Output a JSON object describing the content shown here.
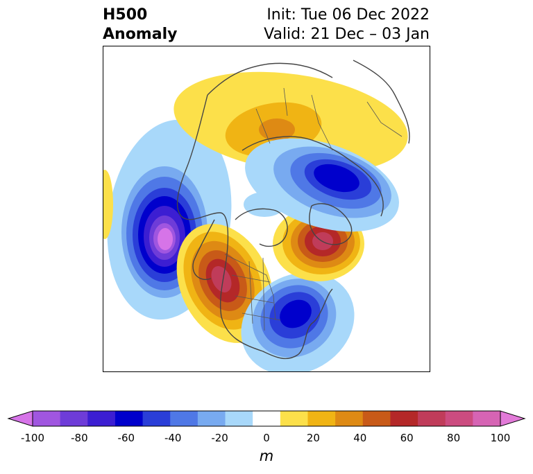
{
  "header": {
    "title_line1": "H500",
    "title_line2": "Anomaly",
    "init_text": "Init: Tue 06 Dec 2022",
    "valid_text": "Valid: 21 Dec – 03 Jan"
  },
  "colorbar": {
    "unit_label": "m",
    "ticks": [
      "-100",
      "-80",
      "-60",
      "-40",
      "-20",
      "0",
      "20",
      "40",
      "60",
      "80",
      "100"
    ],
    "levels": [
      -100,
      -90,
      -80,
      -70,
      -60,
      -50,
      -40,
      -30,
      -20,
      -10,
      10,
      20,
      30,
      40,
      50,
      60,
      70,
      80,
      90,
      100
    ],
    "colors": [
      "#d674e8",
      "#a056e0",
      "#6e3cd8",
      "#3c1ed2",
      "#0000cc",
      "#2a3ed8",
      "#4f78e6",
      "#78aaf0",
      "#a8d8fa",
      "#ffffff",
      "#fce04a",
      "#f0b414",
      "#de8a14",
      "#c85a18",
      "#b42828",
      "#c03c5a",
      "#cc4c80",
      "#d664b4",
      "#e27ad8"
    ]
  },
  "map": {
    "anomalies": [
      {
        "region": "North Pacific / Gulf of Alaska",
        "sign": "negative",
        "peak_m": -100
      },
      {
        "region": "Western North America",
        "sign": "positive",
        "peak_m": 70
      },
      {
        "region": "Eastern North America / Hudson Bay",
        "sign": "negative",
        "peak_m": -60
      },
      {
        "region": "Greenland / Baffin Bay",
        "sign": "positive",
        "peak_m": 70
      },
      {
        "region": "Northern Siberia / Arctic",
        "sign": "negative",
        "peak_m": -60
      },
      {
        "region": "Eurasian Arctic / Barents",
        "sign": "positive",
        "peak_m": 40
      },
      {
        "region": "Canadian Arctic Archipelago",
        "sign": "negative",
        "peak_m": -20
      }
    ]
  }
}
